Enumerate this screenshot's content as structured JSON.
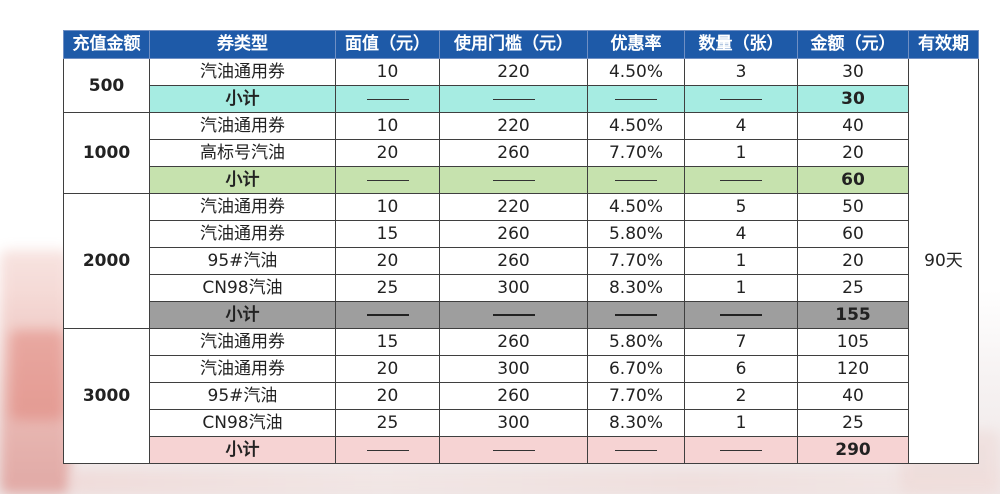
{
  "colors": {
    "header_bg": "#1e5aa8",
    "subtotal_500": "#a6ece2",
    "subtotal_1000": "#c6e2ae",
    "subtotal_2000": "#9e9e9e",
    "subtotal_3000": "#f6d3d3"
  },
  "table": {
    "headers": [
      "充值金额",
      "券类型",
      "面值（元）",
      "使用门槛（元）",
      "优惠率",
      "数量（张）",
      "金额（元）",
      "有效期"
    ],
    "validity": "90天",
    "subtotal_label": "小计",
    "groups": [
      {
        "recharge": "500",
        "rows": [
          [
            "汽油通用券",
            "10",
            "220",
            "4.50%",
            "3",
            "30"
          ]
        ],
        "subtotal": "30"
      },
      {
        "recharge": "1000",
        "rows": [
          [
            "汽油通用券",
            "10",
            "220",
            "4.50%",
            "4",
            "40"
          ],
          [
            "高标号汽油",
            "20",
            "260",
            "7.70%",
            "1",
            "20"
          ]
        ],
        "subtotal": "60"
      },
      {
        "recharge": "2000",
        "rows": [
          [
            "汽油通用券",
            "10",
            "220",
            "4.50%",
            "5",
            "50"
          ],
          [
            "汽油通用券",
            "15",
            "260",
            "5.80%",
            "4",
            "60"
          ],
          [
            "95#汽油",
            "20",
            "260",
            "7.70%",
            "1",
            "20"
          ],
          [
            "CN98汽油",
            "25",
            "300",
            "8.30%",
            "1",
            "25"
          ]
        ],
        "subtotal": "155"
      },
      {
        "recharge": "3000",
        "rows": [
          [
            "汽油通用券",
            "15",
            "260",
            "5.80%",
            "7",
            "105"
          ],
          [
            "汽油通用券",
            "20",
            "300",
            "6.70%",
            "6",
            "120"
          ],
          [
            "95#汽油",
            "20",
            "260",
            "7.70%",
            "2",
            "40"
          ],
          [
            "CN98汽油",
            "25",
            "300",
            "8.30%",
            "1",
            "25"
          ]
        ],
        "subtotal": "290"
      }
    ]
  }
}
